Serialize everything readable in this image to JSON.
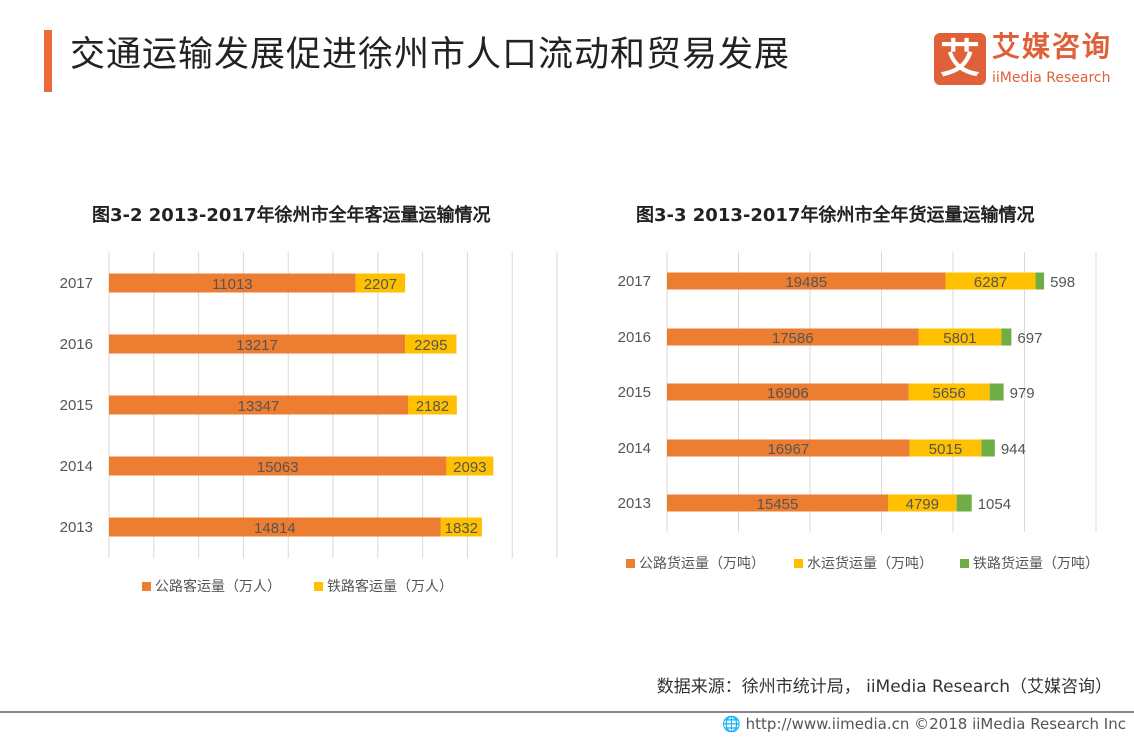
{
  "header": {
    "title": "交通运输发展促进徐州市人口流动和贸易发展",
    "logo_mark": "艾",
    "logo_cn": "艾媒咨询",
    "logo_en": "iiMedia Research"
  },
  "colors": {
    "accent": "#ec6a3a",
    "orange": "#ed7d31",
    "yellow": "#ffc000",
    "green": "#70ad47",
    "grid": "#d9d9d9"
  },
  "chart_data": [
    {
      "type": "bar",
      "orientation": "horizontal",
      "stacked": true,
      "title": "图3-2 2013-2017年徐州市全年客运量运输情况",
      "categories": [
        "2017",
        "2016",
        "2015",
        "2014",
        "2013"
      ],
      "xlim": [
        0,
        20000
      ],
      "grid": true,
      "legend": "bottom",
      "series": [
        {
          "name": "公路客运量（万人）",
          "values": [
            11013,
            13217,
            13347,
            15063,
            14814
          ]
        },
        {
          "name": "铁路客运量（万人）",
          "values": [
            2207,
            2295,
            2182,
            2093,
            1832
          ]
        }
      ]
    },
    {
      "type": "bar",
      "orientation": "horizontal",
      "stacked": true,
      "title": "图3-3 2013-2017年徐州市全年货运量运输情况",
      "categories": [
        "2017",
        "2016",
        "2015",
        "2014",
        "2013"
      ],
      "xlim": [
        0,
        30000
      ],
      "grid": true,
      "legend": "bottom",
      "series": [
        {
          "name": "公路货运量（万吨）",
          "values": [
            19485,
            17586,
            16906,
            16967,
            15455
          ]
        },
        {
          "name": "水运货运量（万吨）",
          "values": [
            6287,
            5801,
            5656,
            5015,
            4799
          ]
        },
        {
          "name": "铁路货运量（万吨）",
          "values": [
            598,
            697,
            979,
            944,
            1054
          ]
        }
      ]
    }
  ],
  "source": "数据来源：徐州市统计局， iiMedia Research（艾媒咨询）",
  "footer": "🌐 http://www.iimedia.cn    ©2018  iiMedia Research  Inc"
}
